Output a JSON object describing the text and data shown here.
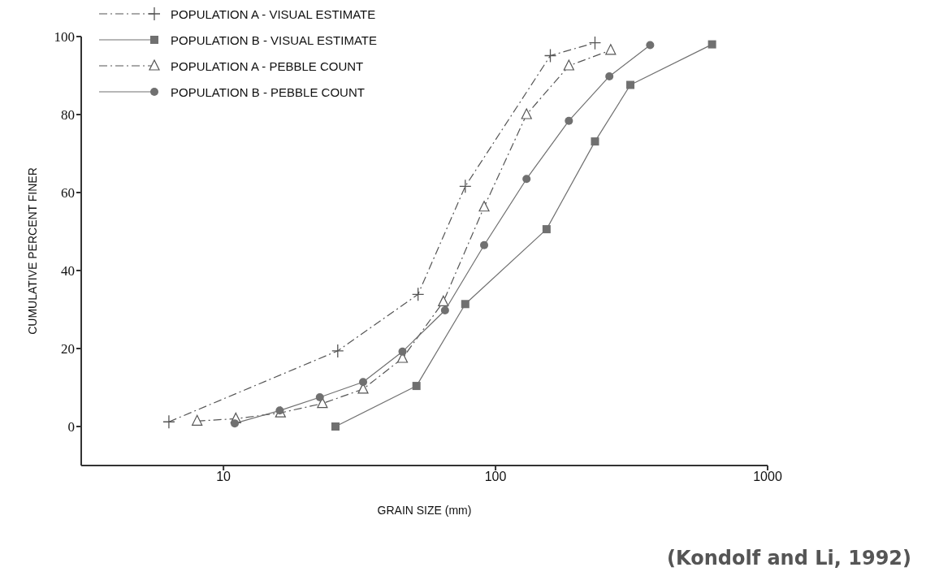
{
  "chart_data": {
    "type": "line",
    "xlabel": "GRAIN SIZE    (mm)",
    "ylabel": "CUMULATIVE PERCENT FINER",
    "log": "x",
    "xlim": [
      3,
      1000
    ],
    "xticks": [
      10,
      100,
      1000
    ],
    "ylim": [
      -10,
      100
    ],
    "yticks": [
      0,
      20,
      40,
      60,
      80,
      100
    ],
    "grid": false,
    "legend": "top left",
    "annotations": [
      "(Kondolf and Li, 1992)"
    ],
    "series": [
      {
        "name": "POPULATION A - VISUAL ESTIMATE",
        "color": "#555555",
        "marker": "cross",
        "line_style": "dashed",
        "x": [
          6.3,
          26.3,
          51.9,
          77.4,
          159,
          232
        ],
        "values": [
          1.2,
          19.4,
          33.9,
          61.6,
          95.1,
          98.4
        ]
      },
      {
        "name": "POPULATION B - VISUAL ESTIMATE",
        "color": "#707070",
        "marker": "square",
        "line_style": "solid",
        "x": [
          25.8,
          51.2,
          77.4,
          154,
          232,
          313,
          625
        ],
        "values": [
          0,
          10.4,
          31.4,
          50.6,
          73.1,
          87.6,
          98
        ]
      },
      {
        "name": "POPULATION A - PEBBLE COUNT",
        "color": "#555555",
        "marker": "triangle",
        "line_style": "dashed",
        "x": [
          8.0,
          11.1,
          16.2,
          23.1,
          32.6,
          45.5,
          64.3,
          90.8,
          130,
          186,
          265
        ],
        "values": [
          1.4,
          2.0,
          3.5,
          5.9,
          9.6,
          17.5,
          32,
          56.3,
          80,
          92.5,
          96.5
        ]
      },
      {
        "name": "POPULATION B - PEBBLE COUNT",
        "color": "#707070",
        "marker": "circle",
        "line_style": "solid",
        "x": [
          11.0,
          16.1,
          22.6,
          32.6,
          45.5,
          65.2,
          90.8,
          130,
          186,
          262,
          370
        ],
        "values": [
          0.8,
          4.1,
          7.5,
          11.4,
          19.2,
          29.8,
          46.5,
          63.5,
          78.4,
          89.8,
          97.8
        ]
      }
    ]
  }
}
